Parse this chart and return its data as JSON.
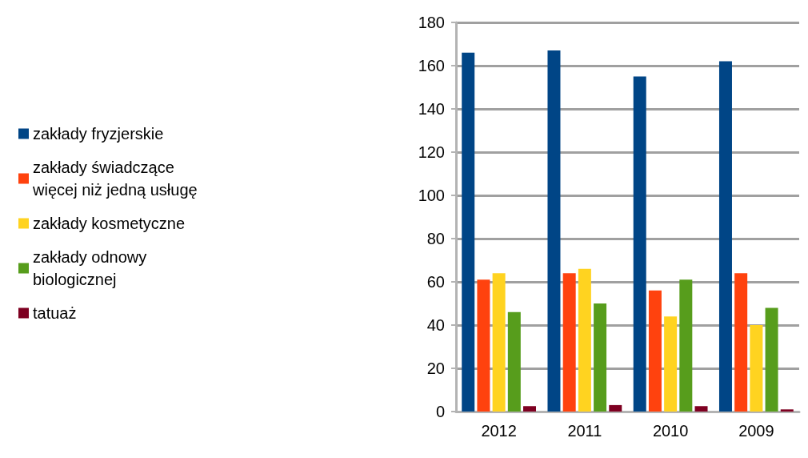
{
  "chart_data": {
    "type": "bar",
    "categories": [
      "2012",
      "2011",
      "2010",
      "2009"
    ],
    "series": [
      {
        "name": "zakłady fryzjerskie",
        "color": "#004586",
        "values": [
          166,
          167,
          155,
          162
        ]
      },
      {
        "name": "zakłady świadczące więcej niż jedną usługę",
        "color": "#ff420e",
        "values": [
          61,
          64,
          56,
          64
        ]
      },
      {
        "name": "zakłady kosmetyczne",
        "color": "#ffd320",
        "values": [
          64,
          66,
          44,
          40
        ]
      },
      {
        "name": "zakłady odnowy biologicznej",
        "color": "#579d1c",
        "values": [
          46,
          50,
          61,
          48
        ]
      },
      {
        "name": "tatuaż",
        "color": "#7e0021",
        "values": [
          2.5,
          3,
          2.5,
          1
        ]
      }
    ],
    "ylim": [
      0,
      180
    ],
    "yticks": [
      0,
      20,
      40,
      60,
      80,
      100,
      120,
      140,
      160,
      180
    ],
    "grid": "y",
    "legend": "left"
  }
}
